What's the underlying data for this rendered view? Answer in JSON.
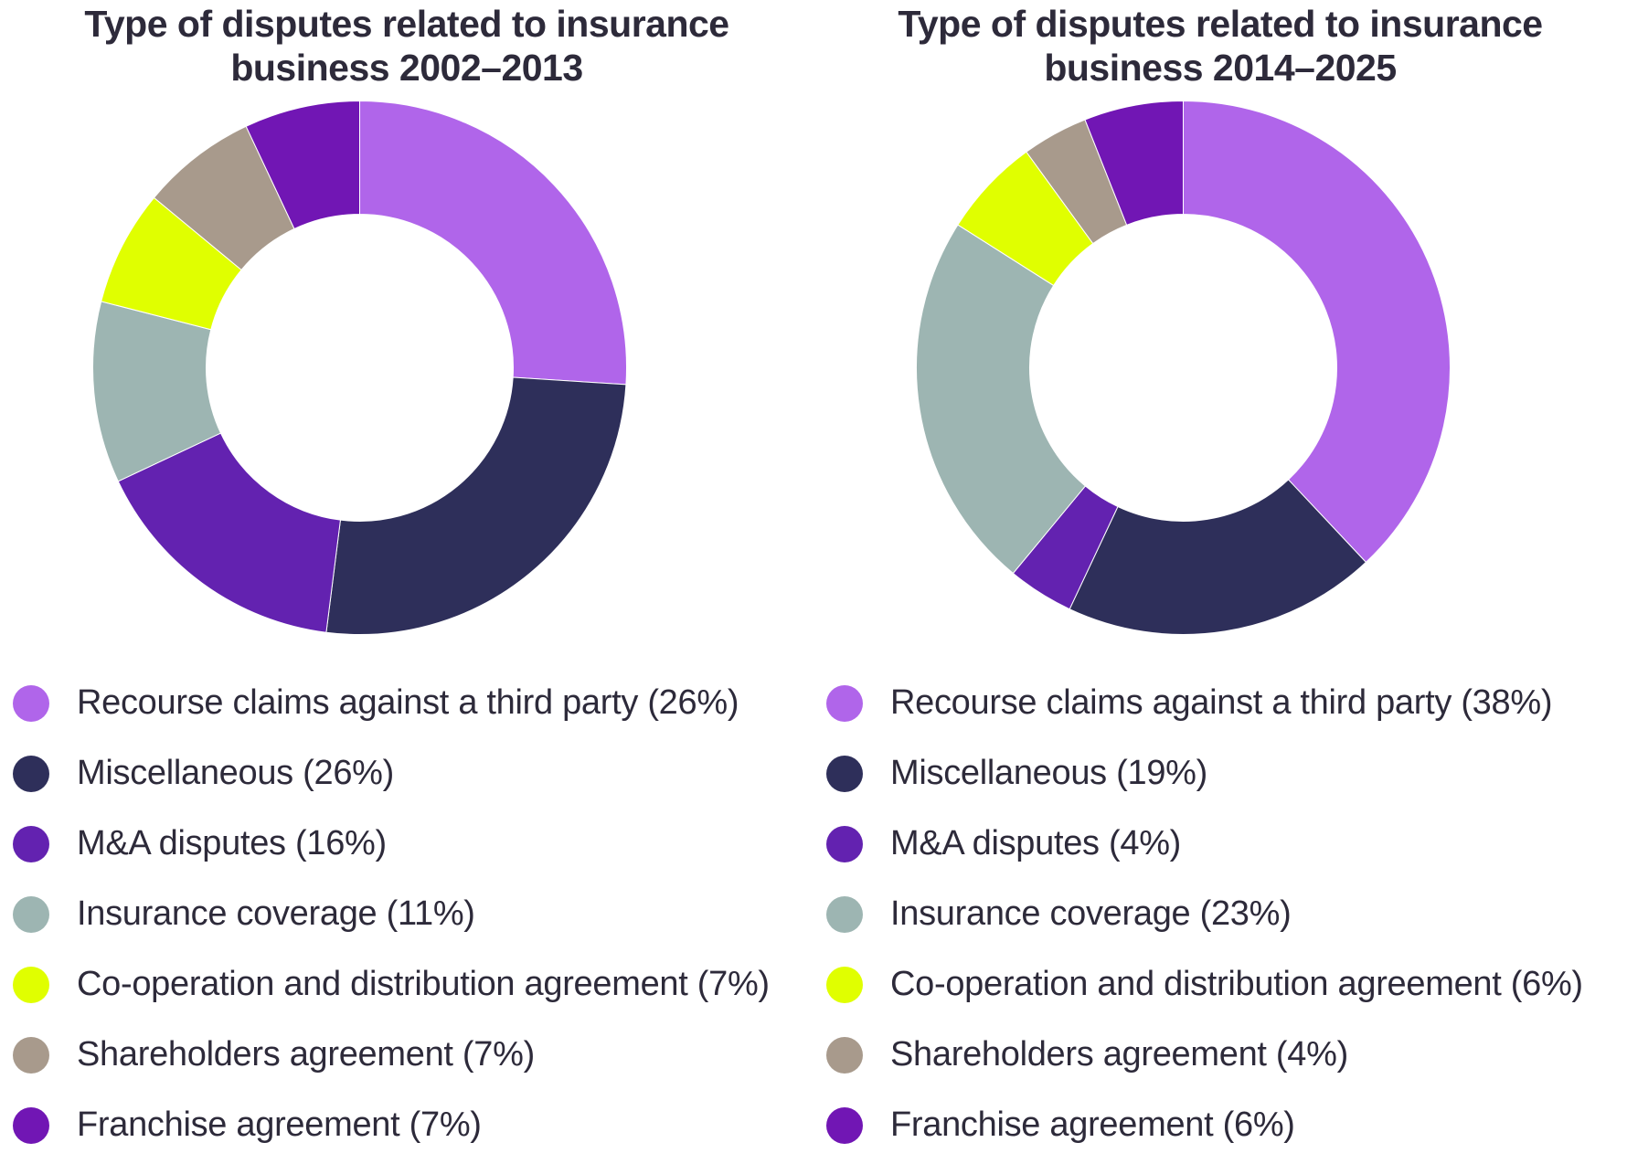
{
  "colors": {
    "Recourse claims against a third party": "#b065ea",
    "Miscellaneous": "#2e2f5a",
    "M&A disputes": "#6322b0",
    "Insurance coverage": "#9db5b2",
    "Co-operation and distribution agreement": "#e0ff00",
    "Shareholders agreement": "#a89a8c",
    "Franchise agreement": "#7116b4"
  },
  "chart_data": [
    {
      "type": "pie",
      "title_lines": [
        "Type of disputes related to insurance",
        "business 2002–2013"
      ],
      "slices": [
        {
          "label": "Recourse claims against a third party",
          "value": 26
        },
        {
          "label": "Miscellaneous",
          "value": 26
        },
        {
          "label": "M&A disputes",
          "value": 16
        },
        {
          "label": "Insurance coverage",
          "value": 11
        },
        {
          "label": "Co-operation and distribution agreement",
          "value": 7
        },
        {
          "label": "Shareholders agreement",
          "value": 7
        },
        {
          "label": "Franchise agreement",
          "value": 7
        }
      ],
      "legend": [
        "Recourse claims against a third party (26%)",
        "Miscellaneous (26%)",
        "M&A disputes (16%)",
        "Insurance coverage (11%)",
        "Co-operation and distribution agreement (7%)",
        "Shareholders agreement (7%)",
        "Franchise agreement (7%)"
      ],
      "legend_position": "bottom"
    },
    {
      "type": "pie",
      "title_lines": [
        "Type of disputes related to insurance",
        "business 2014–2025"
      ],
      "slices": [
        {
          "label": "Recourse claims against a third party",
          "value": 38
        },
        {
          "label": "Miscellaneous",
          "value": 19
        },
        {
          "label": "M&A disputes",
          "value": 4
        },
        {
          "label": "Insurance coverage",
          "value": 23
        },
        {
          "label": "Co-operation and distribution agreement",
          "value": 6
        },
        {
          "label": "Shareholders agreement",
          "value": 4
        },
        {
          "label": "Franchise agreement",
          "value": 6
        }
      ],
      "legend": [
        "Recourse claims against a third party (38%)",
        "Miscellaneous (19%)",
        "M&A disputes (4%)",
        "Insurance coverage (23%)",
        "Co-operation and distribution agreement (6%)",
        "Shareholders agreement (4%)",
        "Franchise agreement (6%)"
      ],
      "legend_position": "bottom"
    }
  ]
}
